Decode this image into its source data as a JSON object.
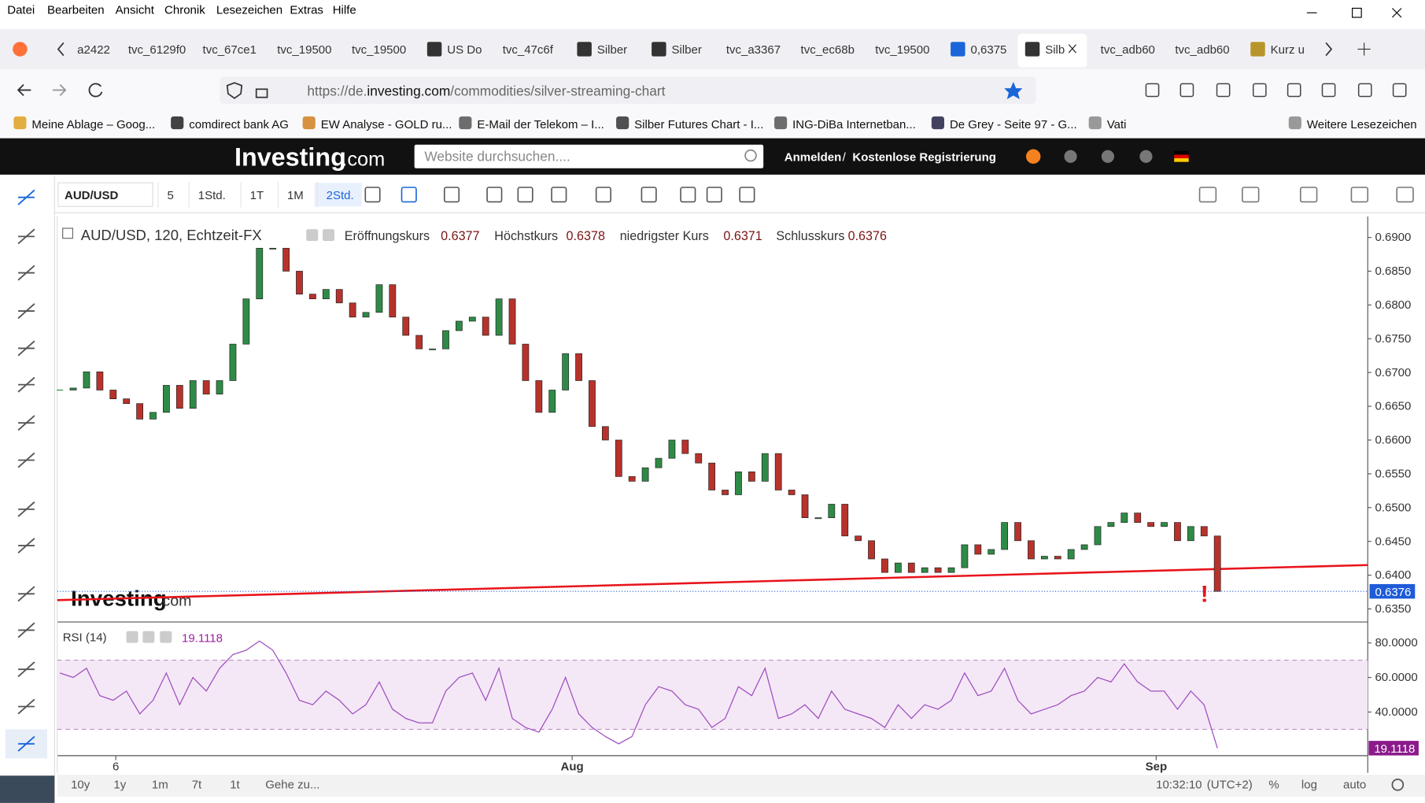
{
  "menu": [
    "Datei",
    "Bearbeiten",
    "Ansicht",
    "Chronik",
    "Lesezeichen",
    "Extras",
    "Hilfe"
  ],
  "tabs": [
    "a2422",
    "tvc_6129f0",
    "tvc_67ce1",
    "tvc_19500",
    "tvc_19500",
    "US Do",
    "tvc_47c6f",
    "Silber",
    "Silber",
    "tvc_a3367",
    "tvc_ec68b",
    "tvc_19500",
    "0,6375",
    "Silb",
    "tvc_adb60",
    "tvc_adb60",
    "Kurz u"
  ],
  "url": {
    "prefix": "https://de.",
    "domain": "investing.com",
    "path": "/commodities/silver-streaming-chart"
  },
  "bookmarks": [
    "Meine Ablage – Goog...",
    "comdirect bank AG",
    "EW Analyse - GOLD ru...",
    "E-Mail der Telekom – I...",
    "Silber Futures Chart - I...",
    "ING-DiBa Internetban...",
    "De Grey - Seite 97 - G...",
    "Vati",
    "Weitere Lesezeichen"
  ],
  "site": {
    "logo": "Investing",
    "logo_suffix": ".com",
    "search": "Website durchsuchen....",
    "login": "Anmelden",
    "separator": "/",
    "register": "Kostenlose Registrierung"
  },
  "toolbar": {
    "symbol": "AUD/USD",
    "intervals": [
      "5",
      "1Std.",
      "1T",
      "1M",
      "2Std."
    ]
  },
  "chart_data": [
    {
      "type": "candlestick",
      "title": "AUD/USD, 120, Echtzeit-FX",
      "ohlc": [
        {
          "label": "Eröffnungskurs",
          "value": "0.6377"
        },
        {
          "label": "Höchstkurs",
          "value": "0.6378"
        },
        {
          "label": "niedrigster Kurs",
          "value": "0.6371"
        },
        {
          "label": "Schlusskurs",
          "value": "0.6376"
        }
      ],
      "watermark": "Investing",
      "watermark_suffix": ".com",
      "annotation": "!",
      "up_color": "#2e8b47",
      "down_color": "#b8322b",
      "values": [
        0.6674,
        0.6677,
        0.6701,
        0.6674,
        0.6661,
        0.6654,
        0.6631,
        0.6641,
        0.6681,
        0.6647,
        0.6688,
        0.6668,
        0.6688,
        0.6742,
        0.6809,
        0.6884,
        0.6884,
        0.685,
        0.6816,
        0.6809,
        0.6823,
        0.6803,
        0.6782,
        0.6789,
        0.683,
        0.6782,
        0.6755,
        0.6735,
        0.6735,
        0.6762,
        0.6776,
        0.6782,
        0.6755,
        0.6809,
        0.6742,
        0.6688,
        0.6641,
        0.6674,
        0.6728,
        0.6688,
        0.662,
        0.66,
        0.6546,
        0.6539,
        0.6559,
        0.6573,
        0.66,
        0.658,
        0.6566,
        0.6526,
        0.6519,
        0.6553,
        0.6539,
        0.658,
        0.6526,
        0.6519,
        0.6485,
        0.6485,
        0.6505,
        0.6458,
        0.6451,
        0.6424,
        0.6404,
        0.6418,
        0.6404,
        0.6411,
        0.6404,
        0.6411,
        0.6445,
        0.6431,
        0.6438,
        0.6478,
        0.6451,
        0.6424,
        0.6428,
        0.6424,
        0.6438,
        0.6445,
        0.6472,
        0.6478,
        0.6492,
        0.6478,
        0.6472,
        0.6478,
        0.6451,
        0.6472,
        0.6458,
        0.6376
      ],
      "trend_line": {
        "values": [
          0.6363,
          0.6415
        ],
        "color": "#e8141b"
      },
      "xlim": [
        -0.2,
        98.3
      ],
      "ylim": [
        0.6332,
        0.6931
      ],
      "yticks": [
        {
          "value": 0.635,
          "label": "0.6350"
        },
        {
          "value": 0.64,
          "label": "0.6400"
        },
        {
          "value": 0.645,
          "label": "0.6450"
        },
        {
          "value": 0.65,
          "label": "0.6500"
        },
        {
          "value": 0.655,
          "label": "0.6550"
        },
        {
          "value": 0.66,
          "label": "0.6600"
        },
        {
          "value": 0.665,
          "label": "0.6650"
        },
        {
          "value": 0.67,
          "label": "0.6700"
        },
        {
          "value": 0.675,
          "label": "0.6750"
        },
        {
          "value": 0.68,
          "label": "0.6800"
        },
        {
          "value": 0.685,
          "label": "0.6850"
        },
        {
          "value": 0.69,
          "label": "0.6900"
        }
      ]
    },
    {
      "type": "line",
      "title": "RSI (14)",
      "color": "#a050c0",
      "band": [
        30,
        70
      ],
      "values": [
        62.6,
        60.0,
        65.3,
        49.5,
        46.8,
        52.1,
        38.9,
        46.8,
        62.6,
        44.2,
        60.0,
        52.1,
        65.3,
        73.2,
        75.8,
        81.1,
        75.8,
        62.6,
        46.8,
        44.2,
        52.1,
        46.8,
        38.9,
        44.2,
        57.4,
        41.6,
        36.3,
        33.7,
        33.7,
        52.1,
        60.0,
        62.6,
        46.8,
        65.3,
        36.3,
        31.1,
        28.4,
        41.6,
        60.0,
        38.9,
        31.1,
        25.8,
        21.6,
        25.8,
        44.2,
        54.7,
        52.1,
        44.2,
        41.6,
        31.1,
        36.3,
        54.7,
        49.5,
        65.3,
        36.3,
        38.9,
        44.2,
        36.3,
        52.1,
        41.6,
        38.9,
        36.3,
        31.1,
        44.2,
        36.3,
        44.2,
        41.6,
        46.8,
        62.6,
        49.5,
        52.1,
        65.3,
        46.8,
        38.9,
        41.6,
        44.2,
        49.5,
        52.1,
        60.0,
        57.4,
        67.9,
        57.4,
        52.1,
        52.1,
        41.6,
        52.1,
        44.2,
        19.1118
      ],
      "xlim": [
        -0.2,
        98.3
      ],
      "ylim": [
        15.3,
        90.5
      ],
      "yticks": [
        {
          "value": 40,
          "label": "40.0000"
        },
        {
          "value": 60,
          "label": "60.0000"
        },
        {
          "value": 80,
          "label": "80.0000"
        }
      ],
      "xticks": [
        {
          "value": 4.2,
          "label": "6"
        },
        {
          "value": 38.5,
          "label": "Aug"
        },
        {
          "value": 82.4,
          "label": "Sep"
        }
      ]
    }
  ],
  "bottom_bar": {
    "ranges": [
      "10y",
      "1y",
      "1m",
      "7t",
      "1t"
    ],
    "goto": "Gehe zu...",
    "time": "10:32:10",
    "timezone": "(UTC+2)",
    "percent": "%",
    "log": "log",
    "auto": "auto"
  }
}
